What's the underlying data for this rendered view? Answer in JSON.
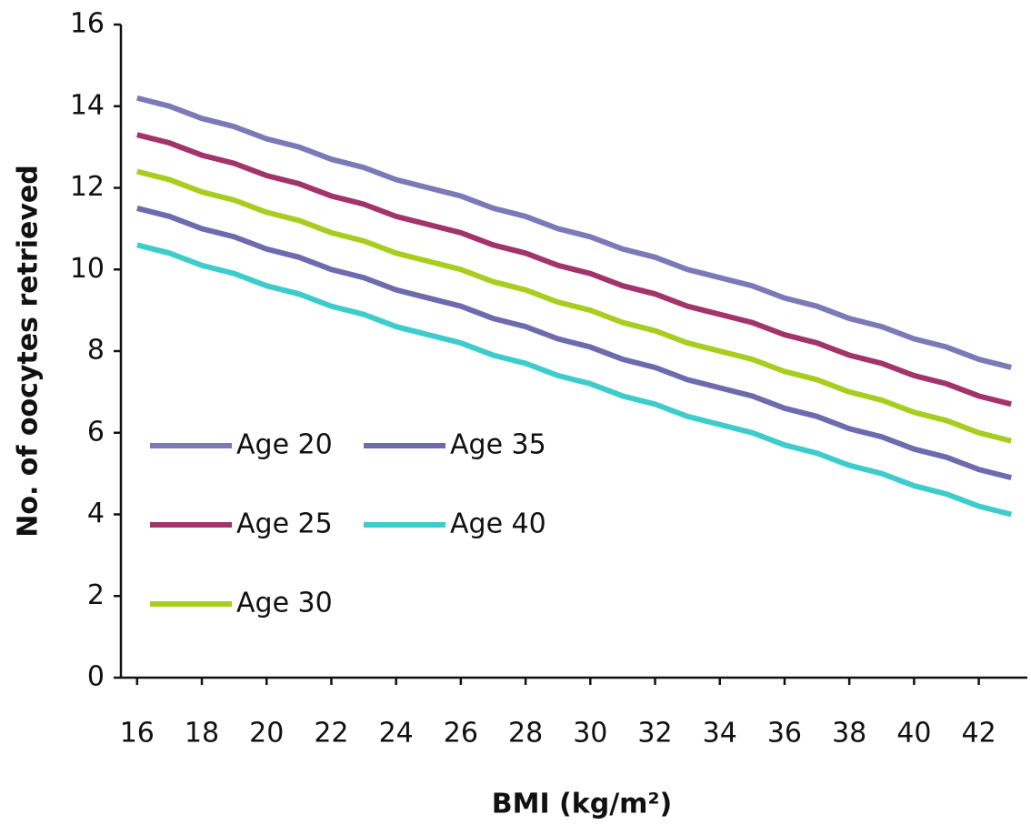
{
  "chart_data": {
    "type": "line",
    "x_label": "BMI (kg/m²)",
    "y_label": "No. of oocytes retrieved",
    "x": [
      16,
      17,
      18,
      19,
      20,
      21,
      22,
      23,
      24,
      25,
      26,
      27,
      28,
      29,
      30,
      31,
      32,
      33,
      34,
      35,
      36,
      37,
      38,
      39,
      40,
      41,
      42,
      43
    ],
    "series": [
      {
        "name": "Age 20",
        "color": "#7c79b9",
        "values": [
          14.2,
          14.0,
          13.7,
          13.5,
          13.2,
          13.0,
          12.7,
          12.5,
          12.2,
          12.0,
          11.8,
          11.5,
          11.3,
          11.0,
          10.8,
          10.5,
          10.3,
          10.0,
          9.8,
          9.6,
          9.3,
          9.1,
          8.8,
          8.6,
          8.3,
          8.1,
          7.8,
          7.6
        ]
      },
      {
        "name": "Age 25",
        "color": "#a3346b",
        "values": [
          13.3,
          13.1,
          12.8,
          12.6,
          12.3,
          12.1,
          11.8,
          11.6,
          11.3,
          11.1,
          10.9,
          10.6,
          10.4,
          10.1,
          9.9,
          9.6,
          9.4,
          9.1,
          8.9,
          8.7,
          8.4,
          8.2,
          7.9,
          7.7,
          7.4,
          7.2,
          6.9,
          6.7
        ]
      },
      {
        "name": "Age 30",
        "color": "#a9cd1e",
        "values": [
          12.4,
          12.2,
          11.9,
          11.7,
          11.4,
          11.2,
          10.9,
          10.7,
          10.4,
          10.2,
          10.0,
          9.7,
          9.5,
          9.2,
          9.0,
          8.7,
          8.5,
          8.2,
          8.0,
          7.8,
          7.5,
          7.3,
          7.0,
          6.8,
          6.5,
          6.3,
          6.0,
          5.8
        ]
      },
      {
        "name": "Age 35",
        "color": "#6e6aae",
        "values": [
          11.5,
          11.3,
          11.0,
          10.8,
          10.5,
          10.3,
          10.0,
          9.8,
          9.5,
          9.3,
          9.1,
          8.8,
          8.6,
          8.3,
          8.1,
          7.8,
          7.6,
          7.3,
          7.1,
          6.9,
          6.6,
          6.4,
          6.1,
          5.9,
          5.6,
          5.4,
          5.1,
          4.9
        ]
      },
      {
        "name": "Age 40",
        "color": "#3dcccc",
        "values": [
          10.6,
          10.4,
          10.1,
          9.9,
          9.6,
          9.4,
          9.1,
          8.9,
          8.6,
          8.4,
          8.2,
          7.9,
          7.7,
          7.4,
          7.2,
          6.9,
          6.7,
          6.4,
          6.2,
          6.0,
          5.7,
          5.5,
          5.2,
          5.0,
          4.7,
          4.5,
          4.2,
          4.0
        ]
      }
    ],
    "xlim": [
      15.5,
      43.5
    ],
    "xticks": [
      16,
      18,
      20,
      22,
      24,
      26,
      28,
      30,
      32,
      34,
      36,
      38,
      40,
      42
    ],
    "ylim": [
      0,
      16
    ],
    "yticks": [
      0,
      2,
      4,
      6,
      8,
      10,
      12,
      14,
      16
    ],
    "grid": false,
    "legend": "lower left"
  }
}
